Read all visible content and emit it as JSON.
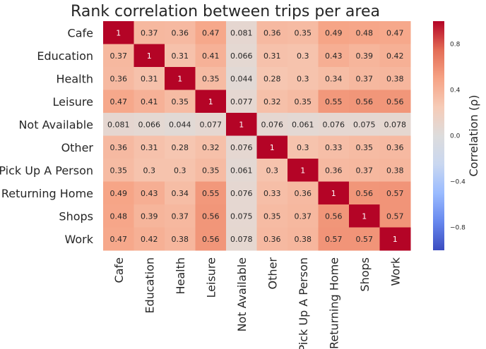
{
  "chart_data": {
    "type": "heatmap",
    "title": "Rank correlation between trips per area",
    "categories": [
      "Cafe",
      "Education",
      "Health",
      "Leisure",
      "Not Available",
      "Other",
      "Pick Up A Person",
      "Returning Home",
      "Shops",
      "Work"
    ],
    "values": [
      [
        1,
        0.37,
        0.36,
        0.47,
        0.081,
        0.36,
        0.35,
        0.49,
        0.48,
        0.47
      ],
      [
        0.37,
        1,
        0.31,
        0.41,
        0.066,
        0.31,
        0.3,
        0.43,
        0.39,
        0.42
      ],
      [
        0.36,
        0.31,
        1,
        0.35,
        0.044,
        0.28,
        0.3,
        0.34,
        0.37,
        0.38
      ],
      [
        0.47,
        0.41,
        0.35,
        1,
        0.077,
        0.32,
        0.35,
        0.55,
        0.56,
        0.56
      ],
      [
        0.081,
        0.066,
        0.044,
        0.077,
        1,
        0.076,
        0.061,
        0.076,
        0.075,
        0.078
      ],
      [
        0.36,
        0.31,
        0.28,
        0.32,
        0.076,
        1,
        0.3,
        0.33,
        0.35,
        0.36
      ],
      [
        0.35,
        0.3,
        0.3,
        0.35,
        0.061,
        0.3,
        1,
        0.36,
        0.37,
        0.38
      ],
      [
        0.49,
        0.43,
        0.34,
        0.55,
        0.076,
        0.33,
        0.36,
        1,
        0.56,
        0.57
      ],
      [
        0.48,
        0.39,
        0.37,
        0.56,
        0.075,
        0.35,
        0.37,
        0.56,
        1,
        0.57
      ],
      [
        0.47,
        0.42,
        0.38,
        0.56,
        0.078,
        0.36,
        0.38,
        0.57,
        0.57,
        1
      ]
    ],
    "colorbar": {
      "label": "Correlation (ρ)",
      "range": [
        -1,
        1
      ],
      "ticks": [
        "−0.8",
        "−0.4",
        "0.0",
        "0.4",
        "0.8"
      ],
      "tick_values": [
        -0.8,
        -0.4,
        0.0,
        0.4,
        0.8
      ],
      "colormap": "coolwarm",
      "colors": [
        "#3b4cc0",
        "#6788ee",
        "#9abbff",
        "#c9d7f0",
        "#dddcdc",
        "#f6cbb7",
        "#f6a385",
        "#e36c55",
        "#b40426"
      ]
    }
  }
}
